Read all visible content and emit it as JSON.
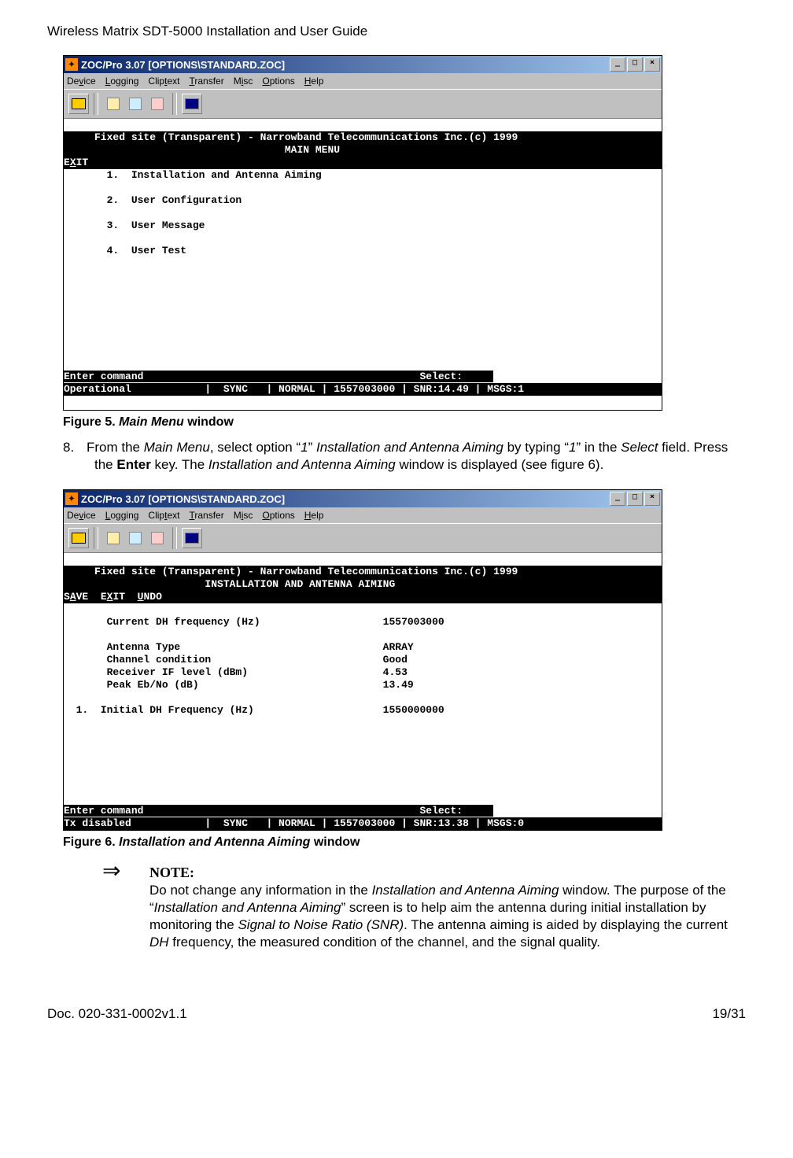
{
  "doc": {
    "header": "Wireless Matrix SDT-5000 Installation and User Guide",
    "footer_left": "Doc. 020-331-0002v1.1",
    "footer_right": "19/31"
  },
  "figure5": {
    "titlebar": "ZOC/Pro 3.07 [OPTIONS\\STANDARD.ZOC]",
    "menus": [
      "Device",
      "Logging",
      "Cliptext",
      "Transfer",
      "Misc",
      "Options",
      "Help"
    ],
    "menu_underline_idx": [
      2,
      0,
      4,
      0,
      1,
      0,
      0
    ],
    "header_line1": "     Fixed site (Transparent) - Narrowband Telecommunications Inc.(c) 1999   ",
    "header_line2": "                                    MAIN MENU                                 ",
    "header_line3_pre": "E",
    "header_line3_ul": "X",
    "header_line3_post": "IT                                                                          ",
    "menu_items": [
      "       1.  Installation and Antenna Aiming",
      "",
      "       2.  User Configuration",
      "",
      "       3.  User Message",
      "",
      "       4.  User Test"
    ],
    "blank_rows": 9,
    "footer_row1": "Enter command                                             Select:",
    "footer_row1_inv_trail": "    ",
    "footer_row2_inv": "Operational            |  SYNC   | NORMAL | 1557003000 | SNR:14.49 | MSGS:1  ",
    "caption_bold": "Figure 5.  ",
    "caption_italic": "Main Menu",
    "caption_rest": " window"
  },
  "body8": {
    "num": "8.",
    "text_parts": [
      "From the ",
      {
        "i": "Main Menu"
      },
      ", select option “",
      {
        "i": "1"
      },
      "” ",
      {
        "i": "Installation and Antenna Aiming"
      },
      " by typing “",
      {
        "i": "1"
      },
      "” in the ",
      {
        "i": "Select"
      },
      " field.  Press the ",
      {
        "b": "Enter"
      },
      " key.  The ",
      {
        "i": "Installation and Antenna Aiming"
      },
      " window is displayed (see figure 6)."
    ]
  },
  "figure6": {
    "titlebar": "ZOC/Pro 3.07 [OPTIONS\\STANDARD.ZOC]",
    "menus": [
      "Device",
      "Logging",
      "Cliptext",
      "Transfer",
      "Misc",
      "Options",
      "Help"
    ],
    "menu_underline_idx": [
      2,
      0,
      4,
      0,
      1,
      0,
      0
    ],
    "header_line1": "     Fixed site (Transparent) - Narrowband Telecommunications Inc.(c) 1999   ",
    "header_line2": "                       INSTALLATION AND ANTENNA AIMING                        ",
    "header_line3_items": [
      {
        "pre": "S",
        "ul": "A",
        "post": "VE  "
      },
      {
        "pre": "E",
        "ul": "X",
        "post": "IT  "
      },
      {
        "pre": "",
        "ul": "U",
        "post": "NDO"
      }
    ],
    "header_line3_pad": "                                                              ",
    "rows": [
      "",
      "       Current DH frequency (Hz)                    1557003000",
      "",
      "       Antenna Type                                 ARRAY",
      "       Channel condition                            Good",
      "       Receiver IF level (dBm)                      4.53",
      "       Peak Eb/No (dB)                              13.49",
      "",
      "  1.  Initial DH Frequency (Hz)                     1550000000"
    ],
    "blank_rows": 7,
    "footer_row1": "Enter command                                             Select:",
    "footer_row1_inv_trail": "    ",
    "footer_row2_inv": "Tx disabled            |  SYNC   | NORMAL | 1557003000 | SNR:13.38 | MSGS:0  ",
    "caption_bold": "Figure 6.  ",
    "caption_italic": "Installation and Antenna Aiming",
    "caption_rest": " window"
  },
  "note": {
    "label": "NOTE:",
    "text_parts": [
      "Do not change any information in the ",
      {
        "i": "Installation and Antenna Aiming"
      },
      " window.  The purpose of the “",
      {
        "i": "Installation and Antenna Aiming"
      },
      "” screen is to help aim the antenna during initial installation by monitoring the ",
      {
        "i": "Signal to Noise Ratio (SNR)"
      },
      ".  The antenna aiming is aided by displaying the current ",
      {
        "i": "DH"
      },
      " frequency, the measured condition of the channel, and the signal quality."
    ]
  },
  "win_btns": {
    "min": "_",
    "max": "□",
    "close": "×"
  }
}
